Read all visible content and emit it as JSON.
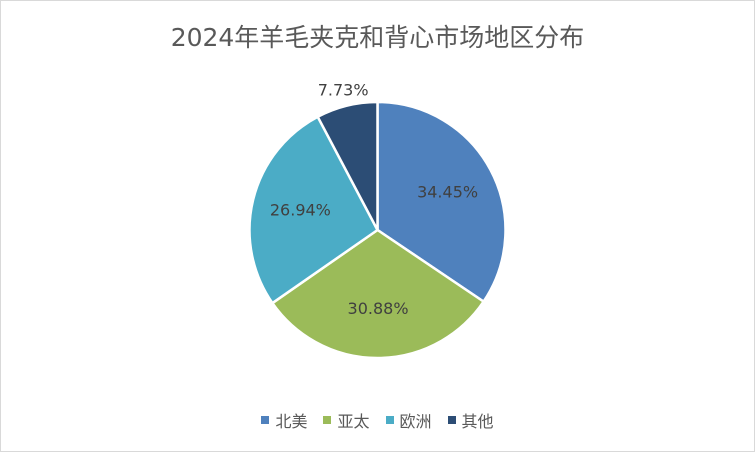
{
  "chart_data": {
    "type": "pie",
    "title": "2024年羊毛夹克和背心市场地区分布",
    "categories": [
      "北美",
      "亚太",
      "欧洲",
      "其他"
    ],
    "values": [
      34.45,
      30.88,
      26.94,
      7.73
    ],
    "data_labels": [
      "34.45%",
      "30.88%",
      "26.94%",
      "7.73%"
    ],
    "colors": [
      "#4f81bd",
      "#9bbb59",
      "#4bacc6",
      "#2c4d75"
    ],
    "legend_position": "bottom"
  }
}
